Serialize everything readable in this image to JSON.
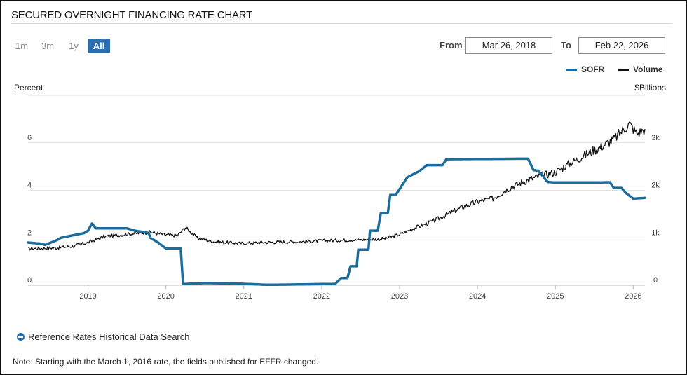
{
  "page": {
    "title": "SECURED OVERNIGHT FINANCING RATE CHART",
    "range_buttons": [
      {
        "label": "1m",
        "active": false
      },
      {
        "label": "3m",
        "active": false
      },
      {
        "label": "1y",
        "active": false
      },
      {
        "label": "All",
        "active": true
      }
    ],
    "from_label": "From",
    "from_value": "Mar 26, 2018",
    "to_label": "To",
    "to_value": "Feb 22, 2026",
    "historical_link": "Reference Rates Historical Data Search",
    "note": "Note: Starting with the March 1, 2016 rate, the fields published for EFFR changed.",
    "colors": {
      "sofr": "#1b6e9c",
      "volume": "#111111",
      "accent": "#2b6fb3"
    }
  },
  "chart_data": {
    "type": "line",
    "title": "",
    "ylabel_left": "Percent",
    "ylabel_right": "$Billions",
    "x_range": [
      2018.23,
      2026.15
    ],
    "x_ticks": [
      2019,
      2020,
      2021,
      2022,
      2023,
      2024,
      2025,
      2026
    ],
    "x_tick_labels": [
      "2019",
      "2020",
      "2021",
      "2022",
      "2023",
      "2024",
      "2025",
      "2026"
    ],
    "y_left_range": [
      0,
      8
    ],
    "y_left_ticks": [
      0,
      2,
      4,
      6
    ],
    "y_left_tick_labels": [
      "0",
      "2",
      "4",
      "6"
    ],
    "y_right_range": [
      0,
      4000
    ],
    "y_right_ticks": [
      0,
      1000,
      2000,
      3000
    ],
    "y_right_tick_labels": [
      "0",
      "1k",
      "2k",
      "3k"
    ],
    "grid": true,
    "legend_position": "top-right",
    "series": [
      {
        "name": "SOFR",
        "axis": "left",
        "x": [
          2018.23,
          2018.4,
          2018.45,
          2018.6,
          2018.65,
          2018.95,
          2019.0,
          2019.05,
          2019.1,
          2019.3,
          2019.5,
          2019.6,
          2019.7,
          2019.78,
          2019.8,
          2019.9,
          2020.0,
          2020.15,
          2020.19,
          2020.22,
          2020.5,
          2020.8,
          2021.0,
          2021.3,
          2021.6,
          2022.0,
          2022.17,
          2022.25,
          2022.33,
          2022.37,
          2022.45,
          2022.47,
          2022.6,
          2022.62,
          2022.72,
          2022.76,
          2022.85,
          2022.88,
          2022.95,
          2023.05,
          2023.1,
          2023.25,
          2023.35,
          2023.55,
          2023.6,
          2024.0,
          2024.5,
          2024.65,
          2024.72,
          2024.78,
          2024.85,
          2024.9,
          2025.0,
          2025.5,
          2025.7,
          2025.75,
          2025.85,
          2025.9,
          2026.0,
          2026.15
        ],
        "y": [
          1.8,
          1.75,
          1.7,
          1.9,
          2.0,
          2.2,
          2.3,
          2.6,
          2.4,
          2.4,
          2.4,
          2.3,
          2.25,
          2.2,
          2.0,
          1.8,
          1.55,
          1.55,
          1.55,
          0.05,
          0.09,
          0.08,
          0.06,
          0.02,
          0.03,
          0.05,
          0.05,
          0.3,
          0.3,
          0.8,
          0.8,
          1.5,
          1.5,
          2.3,
          2.3,
          3.05,
          3.05,
          3.8,
          3.8,
          4.3,
          4.55,
          4.8,
          5.06,
          5.06,
          5.31,
          5.32,
          5.33,
          5.33,
          4.85,
          4.83,
          4.55,
          4.35,
          4.33,
          4.33,
          4.34,
          4.1,
          4.1,
          3.9,
          3.65,
          3.68
        ]
      },
      {
        "name": "Volume",
        "axis": "right",
        "x": [
          2018.23,
          2018.4,
          2018.6,
          2018.8,
          2019.0,
          2019.2,
          2019.4,
          2019.6,
          2019.8,
          2020.0,
          2020.15,
          2020.25,
          2020.4,
          2020.6,
          2020.8,
          2021.0,
          2021.2,
          2021.5,
          2021.8,
          2022.0,
          2022.3,
          2022.6,
          2022.8,
          2023.0,
          2023.2,
          2023.4,
          2023.6,
          2023.8,
          2024.0,
          2024.2,
          2024.4,
          2024.6,
          2024.8,
          2025.0,
          2025.2,
          2025.4,
          2025.6,
          2025.75,
          2025.85,
          2025.95,
          2026.05,
          2026.15
        ],
        "y": [
          770,
          780,
          790,
          820,
          900,
          1020,
          1060,
          1090,
          1120,
          1060,
          1050,
          1220,
          1000,
          920,
          900,
          880,
          900,
          910,
          920,
          940,
          950,
          960,
          980,
          1070,
          1210,
          1330,
          1480,
          1640,
          1760,
          1830,
          2040,
          2190,
          2300,
          2380,
          2580,
          2760,
          2930,
          3070,
          3240,
          3400,
          3190,
          3290
        ]
      }
    ]
  }
}
